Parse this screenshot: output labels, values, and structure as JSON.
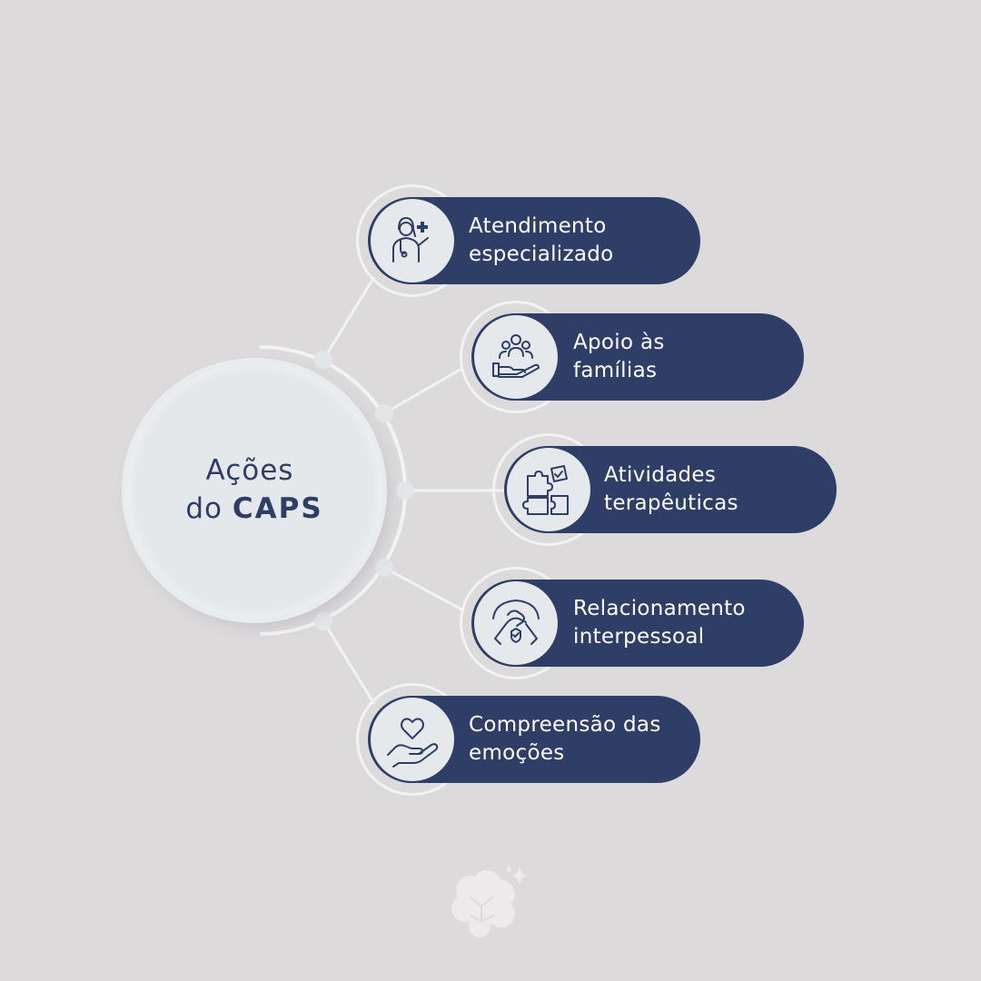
{
  "hub": {
    "line1": "Ações",
    "line2_prefix": "do",
    "line2_bold": "CAPS"
  },
  "items": [
    {
      "line1": "Atendimento",
      "line2": "especializado",
      "icon": "doctor-icon"
    },
    {
      "line1": "Apoio às",
      "line2": "famílias",
      "icon": "family-support-icon"
    },
    {
      "line1": "Atividades",
      "line2": "terapêuticas",
      "icon": "puzzle-icon"
    },
    {
      "line1": "Relacionamento",
      "line2": "interpessoal",
      "icon": "handshake-icon"
    },
    {
      "line1": "Compreensão das",
      "line2": "emoções",
      "icon": "heart-hand-icon"
    }
  ],
  "colors": {
    "background": "#dcdadb",
    "pill": "#2e3e66",
    "hub": "#e4e8ea",
    "connector": "#f2f3f4"
  },
  "footer": {
    "icon": "brain-logo-icon"
  }
}
